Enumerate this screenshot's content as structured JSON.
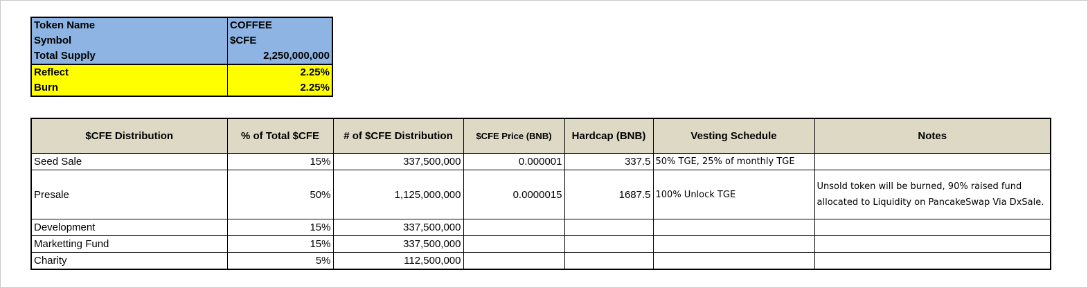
{
  "token_info": [
    {
      "label": "Token Name",
      "value": "COFFEE",
      "align": "left",
      "style": "blue"
    },
    {
      "label": "Symbol",
      "value": "$CFE",
      "align": "left",
      "style": "blue"
    },
    {
      "label": "Total Supply",
      "value": "2,250,000,000",
      "align": "right",
      "style": "blue"
    },
    {
      "label": "Reflect",
      "value": "2.25%",
      "align": "right",
      "style": "yellow"
    },
    {
      "label": "Burn",
      "value": "2.25%",
      "align": "right",
      "style": "yellow"
    }
  ],
  "distribution": {
    "headers": [
      "$CFE Distribution",
      "% of Total $CFE",
      "# of  $CFE Distribution",
      "$CFE Price (BNB)",
      "Hardcap (BNB)",
      "Vesting Schedule",
      "Notes"
    ],
    "rows": [
      {
        "name": "Seed Sale",
        "percent": "15%",
        "amount": "337,500,000",
        "price": "0.000001",
        "hardcap": "337.5",
        "vesting": "50% TGE, 25% of monthly TGE",
        "notes": ""
      },
      {
        "name": "Presale",
        "percent": "50%",
        "amount": "1,125,000,000",
        "price": "0.0000015",
        "hardcap": "1687.5",
        "vesting": "100% Unlock TGE",
        "notes": "Unsold token will be burned, 90% raised fund allocated to Liquidity on PancakeSwap Via DxSale."
      },
      {
        "name": "Development",
        "percent": "15%",
        "amount": "337,500,000",
        "price": "",
        "hardcap": "",
        "vesting": "",
        "notes": ""
      },
      {
        "name": "Marketting Fund",
        "percent": "15%",
        "amount": "337,500,000",
        "price": "",
        "hardcap": "",
        "vesting": "",
        "notes": ""
      },
      {
        "name": "Charity",
        "percent": "5%",
        "amount": "112,500,000",
        "price": "",
        "hardcap": "",
        "vesting": "",
        "notes": ""
      }
    ]
  }
}
